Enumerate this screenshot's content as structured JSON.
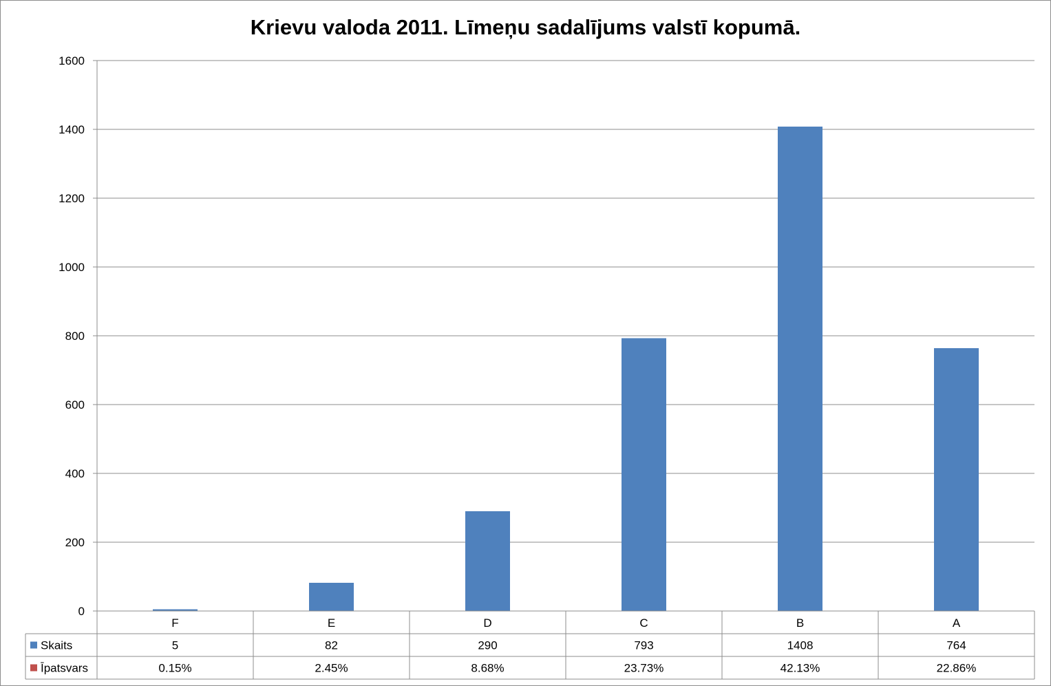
{
  "chart_data": {
    "type": "bar",
    "title": "Krievu valoda 2011. Līmeņu sadalījums valstī kopumā.",
    "categories": [
      "F",
      "E",
      "D",
      "C",
      "B",
      "A"
    ],
    "series": [
      {
        "name": "Skaits",
        "color": "#4f81bd",
        "values": [
          5,
          82,
          290,
          793,
          1408,
          764
        ],
        "table_values": [
          "5",
          "82",
          "290",
          "793",
          "1408",
          "764"
        ],
        "plotted": true
      },
      {
        "name": "Īpatsvars",
        "color": "#c0504d",
        "values": [
          0.15,
          2.45,
          8.68,
          23.73,
          42.13,
          22.86
        ],
        "table_values": [
          "0.15%",
          "2.45%",
          "8.68%",
          "23.73%",
          "42.13%",
          "22.86%"
        ],
        "plotted": false
      }
    ],
    "ylim": [
      0,
      1600
    ],
    "yticks": [
      0,
      200,
      400,
      600,
      800,
      1000,
      1200,
      1400,
      1600
    ],
    "grid": true,
    "legend": "data-table"
  }
}
